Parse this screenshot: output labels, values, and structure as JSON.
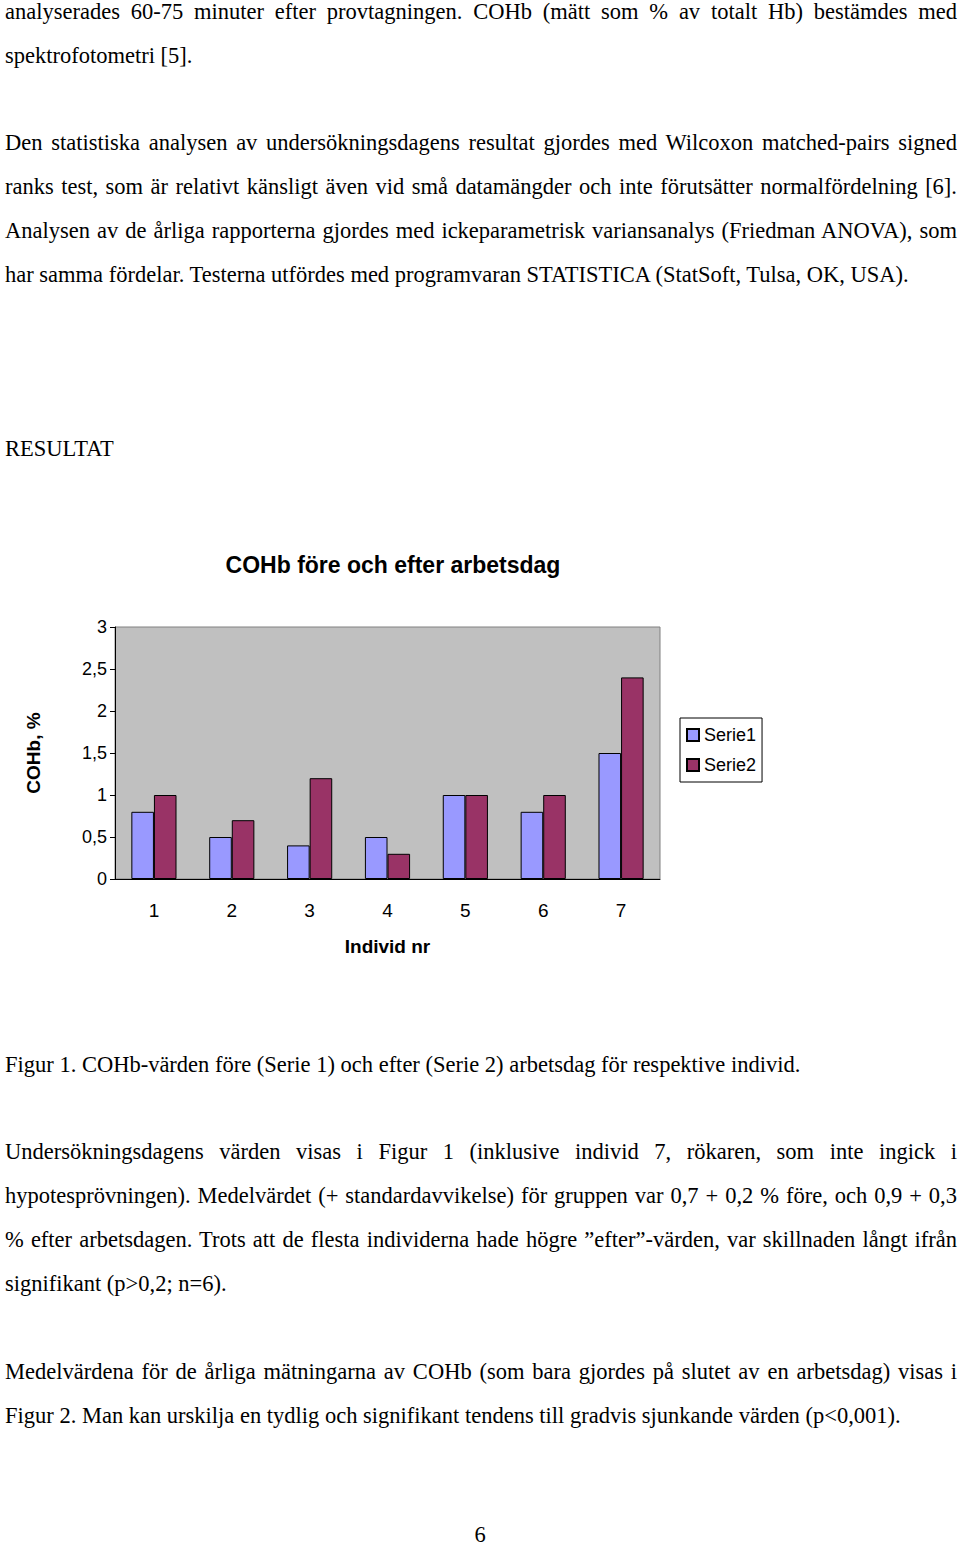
{
  "document": {
    "paragraphs_before": [
      "analyserades 60-75 minuter efter provtagningen. COHb (mätt som % av totalt Hb) bestämdes med spektrofotometri [5].",
      "Den statistiska analysen av undersökningsdagens resultat gjordes med Wilcoxon matched-pairs signed ranks test, som är relativt känsligt även vid små datamängder och inte förutsätter normalfördelning [6]. Analysen av de årliga rapporterna gjordes med ickeparametrisk variansanalys (Friedman ANOVA), som har samma fördelar. Testerna utfördes med programvaran STATISTICA (StatSoft, Tulsa, OK, USA)."
    ],
    "heading": "RESULTAT",
    "caption": "Figur 1. COHb-värden före (Serie 1) och efter (Serie 2) arbetsdag för respektive individ.",
    "paragraphs_after": [
      "Undersökningsdagens värden visas i Figur 1 (inklusive individ 7, rökaren, som inte ingick i hypotesprövningen). Medelvärdet (+ standardavvikelse) för gruppen var 0,7 + 0,2 % före, och 0,9 + 0,3 % efter arbetsdagen. Trots att de flesta individerna hade högre ”efter”-värden, var skillnaden långt ifrån signifikant (p>0,2; n=6).",
      "Medelvärdena för de årliga mätningarna av COHb (som bara gjordes på slutet av en arbetsdag) visas i Figur 2. Man kan urskilja en tydlig och signifikant tendens till gradvis sjunkande värden (p<0,001)."
    ],
    "page_number": "6"
  },
  "chart_data": {
    "type": "bar",
    "title": "COHb före och efter arbetsdag",
    "x_label": "Individ nr",
    "y_label": "COHb, %",
    "categories": [
      "1",
      "2",
      "3",
      "4",
      "5",
      "6",
      "7"
    ],
    "series": [
      {
        "name": "Serie1",
        "color": "#9999ff",
        "values": [
          0.8,
          0.5,
          0.4,
          0.5,
          1.0,
          0.8,
          1.5
        ]
      },
      {
        "name": "Serie2",
        "color": "#993366",
        "values": [
          1.0,
          0.7,
          1.2,
          0.3,
          1.0,
          1.0,
          2.4
        ]
      }
    ],
    "ylim": [
      0,
      3
    ],
    "yticks": [
      0,
      {
        "value": 0.5,
        "label": "0,5"
      },
      1,
      {
        "value": 1.5,
        "label": "1,5"
      },
      2,
      {
        "value": 2.5,
        "label": "2,5"
      },
      3
    ],
    "grid": false,
    "legend": "right"
  }
}
